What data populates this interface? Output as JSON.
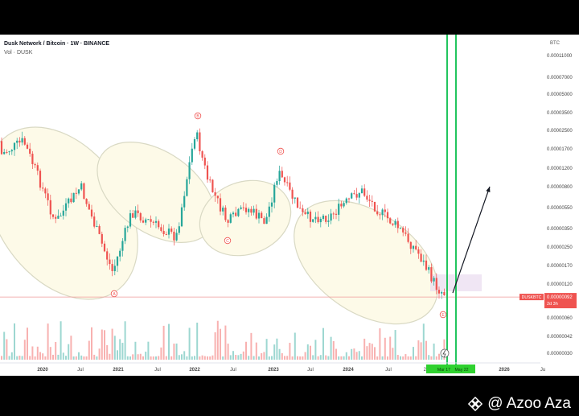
{
  "header": {
    "symbol_title": "Dusk Network / Bitcoin · 1W · BINANCE",
    "volume_label": "Vol · DUSK",
    "axis_unit": "BTC"
  },
  "price_tag": {
    "ticker": "DUSKBTC",
    "price": "0.00000092",
    "countdown": "2d 3h"
  },
  "watermark": {
    "text": "@ Azoo Aza"
  },
  "colors": {
    "up": "#26a69a",
    "down": "#ef5350",
    "ellipse_fill": "#fdfae8",
    "ellipse_stroke": "#d9d9c4",
    "vertical_marker": "#22c55e",
    "projection_arrow": "#131722",
    "target_box": "#eadcf0"
  },
  "chart_data": {
    "type": "candlestick",
    "title": "Dusk Network / Bitcoin · 1W · BINANCE",
    "y_scale": "log",
    "y_ticks": [
      "0.00011000",
      "0.00007000",
      "0.00005000",
      "0.00003500",
      "0.00002500",
      "0.00001700",
      "0.00001200",
      "0.00000800",
      "0.00000550",
      "0.00000350",
      "0.00000250",
      "0.00000170",
      "0.00000120",
      "0.00000060",
      "0.00000042",
      "0.00000030"
    ],
    "x_ticks": [
      "2020",
      "Jul",
      "2021",
      "Jul",
      "2022",
      "Jul",
      "2023",
      "Jul",
      "2024",
      "Jul",
      "20",
      "2026",
      "Ju"
    ],
    "time_range_label": {
      "start": "Mar 17",
      "end": "May 22"
    },
    "wave_labels": [
      "A",
      "B",
      "C",
      "D",
      "E"
    ],
    "approx_price_path": [
      {
        "date": "2019-10",
        "price": 2e-05
      },
      {
        "date": "2019-12",
        "price": 1.1e-05
      },
      {
        "date": "2020-03",
        "price": 4e-06
      },
      {
        "date": "2020-07",
        "price": 8e-06
      },
      {
        "date": "2020-09",
        "price": 4e-06
      },
      {
        "date": "2020-12",
        "price": 1.5e-06
      },
      {
        "date": "2021-03",
        "price": 5e-06
      },
      {
        "date": "2021-06",
        "price": 4e-06
      },
      {
        "date": "2021-10",
        "price": 3e-06
      },
      {
        "date": "2022-01",
        "price": 2.5e-05
      },
      {
        "date": "2022-03",
        "price": 9e-06
      },
      {
        "date": "2022-06",
        "price": 4e-06
      },
      {
        "date": "2022-09",
        "price": 5.5e-06
      },
      {
        "date": "2022-12",
        "price": 4e-06
      },
      {
        "date": "2023-02",
        "price": 1.1e-05
      },
      {
        "date": "2023-06",
        "price": 4.5e-06
      },
      {
        "date": "2023-10",
        "price": 4.5e-06
      },
      {
        "date": "2024-03",
        "price": 7.5e-06
      },
      {
        "date": "2024-06",
        "price": 5e-06
      },
      {
        "date": "2024-09",
        "price": 3.5e-06
      },
      {
        "date": "2024-12",
        "price": 2.2e-06
      },
      {
        "date": "2025-03",
        "price": 1.1e-06
      },
      {
        "date": "2025-05",
        "price": 9.2e-07
      }
    ],
    "projection": {
      "from_price": 9.2e-07,
      "to_price": 8e-06
    }
  }
}
